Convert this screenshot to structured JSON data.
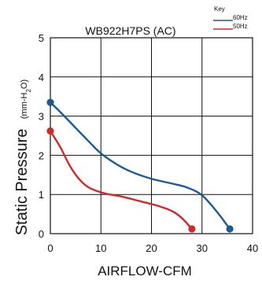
{
  "chart_data": {
    "type": "line",
    "title": "WB922H7PS (AC)",
    "xlabel": "AIRFLOW-CFM",
    "ylabel_main": "Static  Pressure",
    "ylabel_unit": "(mm-H2O)",
    "xlim": [
      0,
      40
    ],
    "ylim": [
      0,
      5
    ],
    "x_ticks": [
      0,
      10,
      20,
      30,
      40
    ],
    "y_ticks": [
      0,
      1,
      2,
      3,
      4,
      5
    ],
    "grid": true,
    "legend": {
      "title": "Key",
      "placement": "top-right"
    },
    "series": [
      {
        "name": "60Hz",
        "color": "#1b5a96",
        "points": [
          [
            0,
            3.35
          ],
          [
            2,
            3.1
          ],
          [
            5,
            2.7
          ],
          [
            8,
            2.3
          ],
          [
            10,
            2.05
          ],
          [
            13,
            1.78
          ],
          [
            16,
            1.58
          ],
          [
            20,
            1.4
          ],
          [
            24,
            1.28
          ],
          [
            27,
            1.18
          ],
          [
            30,
            0.98
          ],
          [
            33,
            0.55
          ],
          [
            35.5,
            0.12
          ]
        ]
      },
      {
        "name": "50Hz",
        "color": "#cc2b2b",
        "points": [
          [
            0,
            2.62
          ],
          [
            2,
            2.2
          ],
          [
            4,
            1.7
          ],
          [
            6,
            1.35
          ],
          [
            8,
            1.15
          ],
          [
            11,
            1.02
          ],
          [
            14,
            0.95
          ],
          [
            18,
            0.82
          ],
          [
            21,
            0.72
          ],
          [
            24,
            0.58
          ],
          [
            26,
            0.4
          ],
          [
            28,
            0.12
          ]
        ]
      }
    ]
  }
}
